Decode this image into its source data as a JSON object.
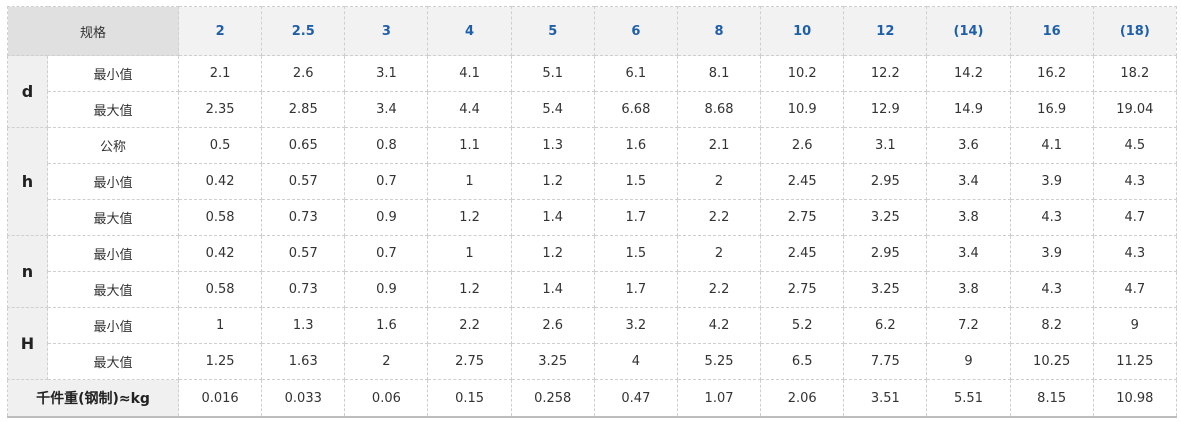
{
  "header": {
    "label": "规格",
    "sizes": [
      "2",
      "2.5",
      "3",
      "4",
      "5",
      "6",
      "8",
      "10",
      "12",
      "(14)",
      "16",
      "(18)"
    ]
  },
  "groups": [
    {
      "name": "d",
      "rows": [
        {
          "label": "最小值",
          "values": [
            "2.1",
            "2.6",
            "3.1",
            "4.1",
            "5.1",
            "6.1",
            "8.1",
            "10.2",
            "12.2",
            "14.2",
            "16.2",
            "18.2"
          ]
        },
        {
          "label": "最大值",
          "values": [
            "2.35",
            "2.85",
            "3.4",
            "4.4",
            "5.4",
            "6.68",
            "8.68",
            "10.9",
            "12.9",
            "14.9",
            "16.9",
            "19.04"
          ]
        }
      ]
    },
    {
      "name": "h",
      "rows": [
        {
          "label": "公称",
          "values": [
            "0.5",
            "0.65",
            "0.8",
            "1.1",
            "1.3",
            "1.6",
            "2.1",
            "2.6",
            "3.1",
            "3.6",
            "4.1",
            "4.5"
          ]
        },
        {
          "label": "最小值",
          "values": [
            "0.42",
            "0.57",
            "0.7",
            "1",
            "1.2",
            "1.5",
            "2",
            "2.45",
            "2.95",
            "3.4",
            "3.9",
            "4.3"
          ]
        },
        {
          "label": "最大值",
          "values": [
            "0.58",
            "0.73",
            "0.9",
            "1.2",
            "1.4",
            "1.7",
            "2.2",
            "2.75",
            "3.25",
            "3.8",
            "4.3",
            "4.7"
          ]
        }
      ]
    },
    {
      "name": "n",
      "rows": [
        {
          "label": "最小值",
          "values": [
            "0.42",
            "0.57",
            "0.7",
            "1",
            "1.2",
            "1.5",
            "2",
            "2.45",
            "2.95",
            "3.4",
            "3.9",
            "4.3"
          ]
        },
        {
          "label": "最大值",
          "values": [
            "0.58",
            "0.73",
            "0.9",
            "1.2",
            "1.4",
            "1.7",
            "2.2",
            "2.75",
            "3.25",
            "3.8",
            "4.3",
            "4.7"
          ]
        }
      ]
    },
    {
      "name": "H",
      "rows": [
        {
          "label": "最小值",
          "values": [
            "1",
            "1.3",
            "1.6",
            "2.2",
            "2.6",
            "3.2",
            "4.2",
            "5.2",
            "6.2",
            "7.2",
            "8.2",
            "9"
          ]
        },
        {
          "label": "最大值",
          "values": [
            "1.25",
            "1.63",
            "2",
            "2.75",
            "3.25",
            "4",
            "5.25",
            "6.5",
            "7.75",
            "9",
            "10.25",
            "11.25"
          ]
        }
      ]
    }
  ],
  "weight": {
    "label": "千件重(钢制)≈kg",
    "values": [
      "0.016",
      "0.033",
      "0.06",
      "0.15",
      "0.258",
      "0.47",
      "1.07",
      "2.06",
      "3.51",
      "5.51",
      "8.15",
      "10.98"
    ]
  }
}
